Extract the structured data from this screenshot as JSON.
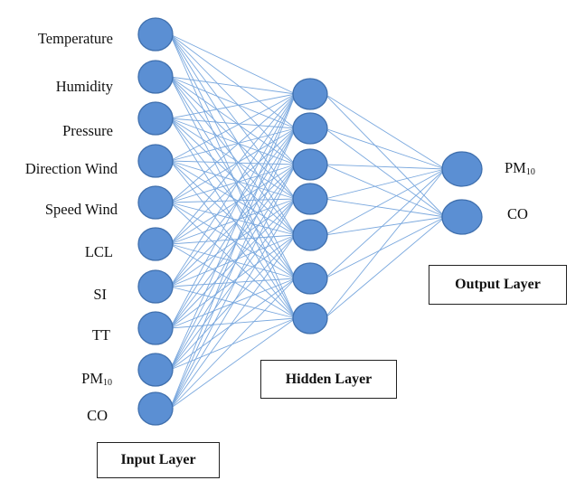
{
  "input_layer": {
    "title": "Input Layer",
    "nodes": [
      {
        "label": "Temperature"
      },
      {
        "label": "Humidity"
      },
      {
        "label": "Pressure"
      },
      {
        "label": "Direction Wind"
      },
      {
        "label": "Speed Wind"
      },
      {
        "label": "LCL"
      },
      {
        "label": "SI"
      },
      {
        "label": "TT"
      },
      {
        "label": "PM",
        "sub": "10"
      },
      {
        "label": "CO"
      }
    ]
  },
  "hidden_layer": {
    "title": "Hidden Layer",
    "node_count": 7
  },
  "output_layer": {
    "title": "Output Layer",
    "nodes": [
      {
        "label": "PM",
        "sub": "10"
      },
      {
        "label": "CO"
      }
    ]
  },
  "colors": {
    "node_fill": "#5b8fd3",
    "node_stroke": "#3f6fad",
    "edge": "#7aa8de"
  }
}
